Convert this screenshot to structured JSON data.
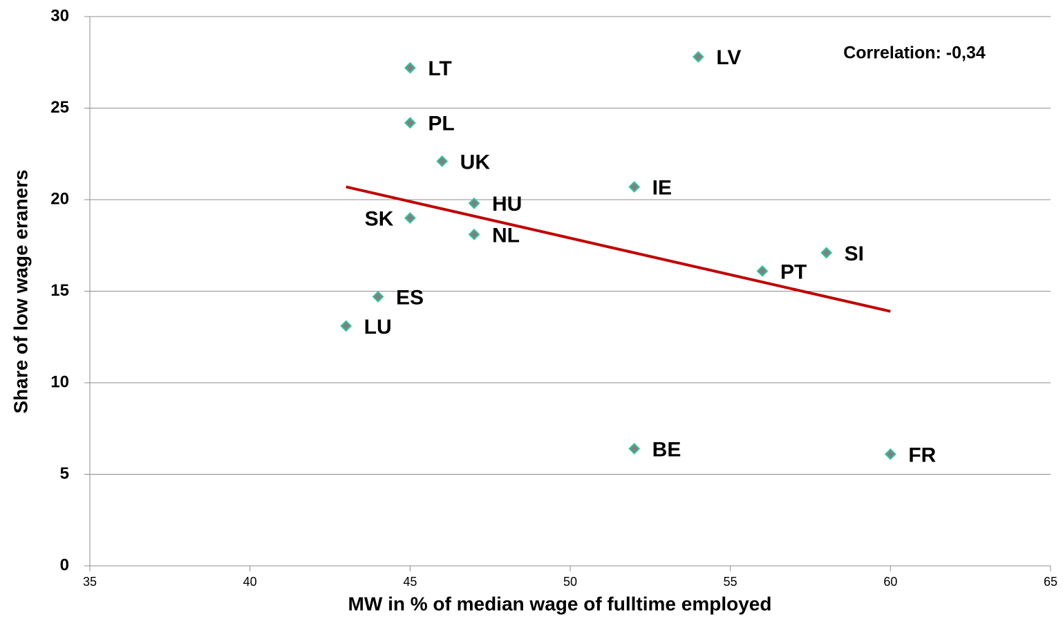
{
  "chart_data": {
    "type": "scatter",
    "x_label": "MW in % of median wage of fulltime employed",
    "y_label": "Share of low wage eraners",
    "annotation": "Correlation: -0,34",
    "labels": [
      "LT",
      "LV",
      "PL",
      "UK",
      "IE",
      "HU",
      "SK",
      "NL",
      "SI",
      "PT",
      "ES",
      "LU",
      "BE",
      "FR"
    ],
    "x": [
      45,
      54,
      45,
      46,
      52,
      47,
      45,
      47,
      58,
      56,
      44,
      43,
      52,
      60
    ],
    "values": [
      27.2,
      27.8,
      24.2,
      22.1,
      20.7,
      19.8,
      19.0,
      18.1,
      17.1,
      16.1,
      14.7,
      13.1,
      6.4,
      6.1
    ],
    "color": "#808080",
    "edge_color": "#2ec4a0",
    "trendline": {
      "x": [
        43,
        60
      ],
      "values": [
        20.7,
        13.9
      ],
      "color": "#c00000"
    },
    "xlim": [
      35,
      65
    ],
    "xticks": [
      35,
      40,
      45,
      50,
      55,
      60,
      65
    ],
    "ylim": [
      0,
      30
    ],
    "yticks": [
      0,
      5,
      10,
      15,
      20,
      25,
      30
    ],
    "grid": true
  }
}
